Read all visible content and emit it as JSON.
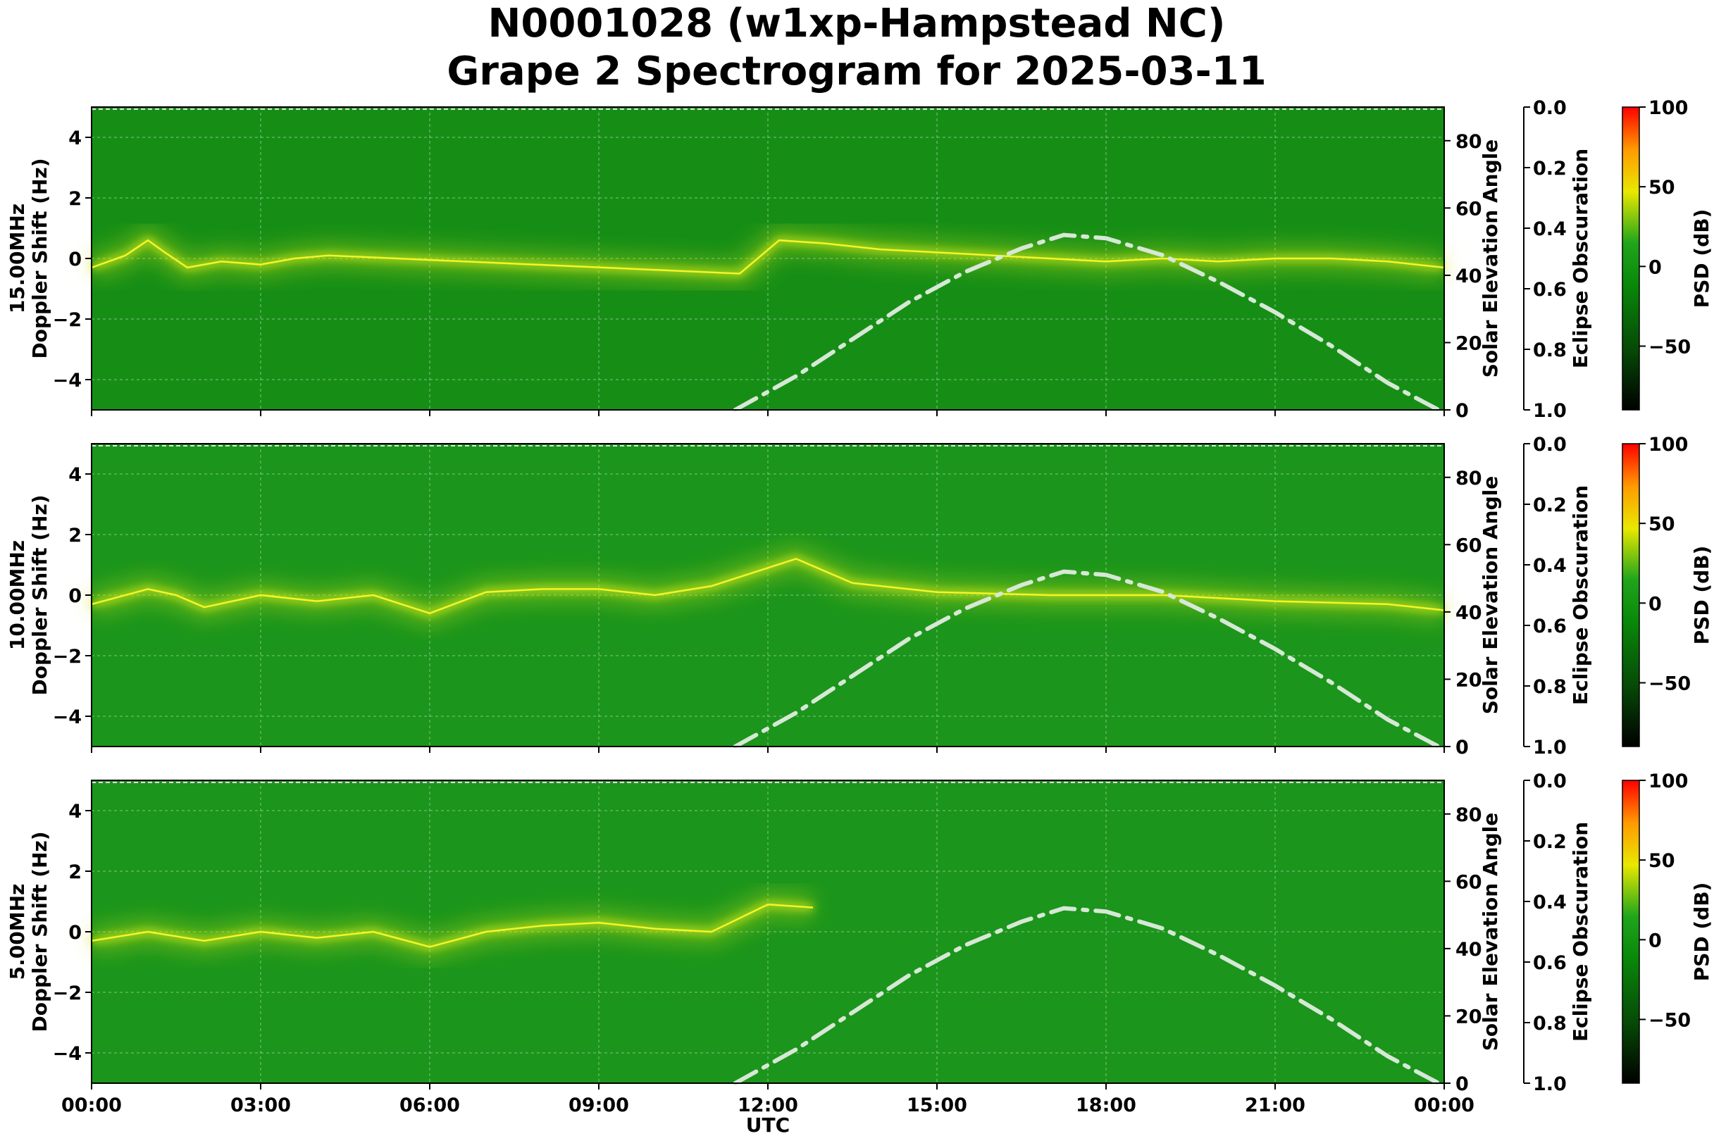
{
  "chart_data": {
    "type": "heatmap",
    "title": "N0001028 (w1xp-Hampstead NC)",
    "subtitle": "Grape 2 Spectrogram for 2025-03-11",
    "xlabel": "UTC",
    "x_ticks": [
      "00:00",
      "03:00",
      "06:00",
      "09:00",
      "12:00",
      "15:00",
      "18:00",
      "21:00",
      "00:00"
    ],
    "x_range_hours": [
      0,
      24
    ],
    "panels": [
      {
        "frequency": "15.00MHz",
        "ylabel": "Doppler Shift (Hz)",
        "ylim": [
          -5,
          5
        ],
        "y_ticks": [
          4,
          2,
          0,
          -2,
          -4
        ],
        "right_axis_label": "Solar Elevation Angle",
        "right_ylim": [
          0,
          90
        ],
        "right_ticks": [
          80,
          60,
          40,
          20,
          0
        ],
        "eclipse_label": "Eclipse Obscuration",
        "eclipse_ticks": [
          "0.0",
          "0.2",
          "0.4",
          "0.6",
          "0.8",
          "1.0"
        ],
        "colorbar_label": "PSD (dB)",
        "colorbar_ticks": [
          "100",
          "50",
          "0",
          "−50"
        ],
        "colorbar_range": [
          -90,
          100
        ],
        "solar_elevation": {
          "hours": [
            11.42,
            12.5,
            13.5,
            14.5,
            15.5,
            16.5,
            17.25,
            18.0,
            19.0,
            20.0,
            21.0,
            22.0,
            23.0,
            23.9
          ],
          "degrees": [
            0,
            10,
            21,
            32,
            41,
            48,
            52,
            51,
            46,
            38,
            29,
            19,
            8,
            -1
          ]
        }
      },
      {
        "frequency": "10.00MHz",
        "ylabel": "Doppler Shift (Hz)",
        "ylim": [
          -5,
          5
        ],
        "y_ticks": [
          4,
          2,
          0,
          -2,
          -4
        ],
        "right_axis_label": "Solar Elevation Angle",
        "right_ylim": [
          0,
          90
        ],
        "right_ticks": [
          80,
          60,
          40,
          20,
          0
        ],
        "eclipse_label": "Eclipse Obscuration",
        "eclipse_ticks": [
          "0.0",
          "0.2",
          "0.4",
          "0.6",
          "0.8",
          "1.0"
        ],
        "colorbar_label": "PSD (dB)",
        "colorbar_ticks": [
          "100",
          "50",
          "0",
          "−50"
        ],
        "colorbar_range": [
          -90,
          100
        ],
        "solar_elevation": {
          "hours": [
            11.42,
            12.5,
            13.5,
            14.5,
            15.5,
            16.5,
            17.25,
            18.0,
            19.0,
            20.0,
            21.0,
            22.0,
            23.0,
            23.9
          ],
          "degrees": [
            0,
            10,
            21,
            32,
            41,
            48,
            52,
            51,
            46,
            38,
            29,
            19,
            8,
            -1
          ]
        }
      },
      {
        "frequency": "5.00MHz",
        "ylabel": "Doppler Shift (Hz)",
        "ylim": [
          -5,
          5
        ],
        "y_ticks": [
          4,
          2,
          0,
          -2,
          -4
        ],
        "right_axis_label": "Solar Elevation Angle",
        "right_ylim": [
          0,
          90
        ],
        "right_ticks": [
          80,
          60,
          40,
          20,
          0
        ],
        "eclipse_label": "Eclipse Obscuration",
        "eclipse_ticks": [
          "0.0",
          "0.2",
          "0.4",
          "0.6",
          "0.8",
          "1.0"
        ],
        "colorbar_label": "PSD (dB)",
        "colorbar_ticks": [
          "100",
          "50",
          "0",
          "−50"
        ],
        "colorbar_range": [
          -90,
          100
        ],
        "solar_elevation": {
          "hours": [
            11.42,
            12.5,
            13.5,
            14.5,
            15.5,
            16.5,
            17.25,
            18.0,
            19.0,
            20.0,
            21.0,
            22.0,
            23.0,
            23.9
          ],
          "degrees": [
            0,
            10,
            21,
            32,
            41,
            48,
            52,
            51,
            46,
            38,
            29,
            19,
            8,
            -1
          ]
        }
      }
    ],
    "doppler_trace": {
      "panel_15MHz": {
        "hours": [
          0,
          0.6,
          1.0,
          1.3,
          1.7,
          2.3,
          3.0,
          3.6,
          4.2,
          11.5,
          12.2,
          13.0,
          14.0,
          15.0,
          16.0,
          17.0,
          18.0,
          19.0,
          20.0,
          21.0,
          22.0,
          23.0,
          24.0
        ],
        "doppler_hz": [
          -0.3,
          0.1,
          0.6,
          0.2,
          -0.3,
          -0.1,
          -0.2,
          0.0,
          0.1,
          -0.5,
          0.6,
          0.5,
          0.3,
          0.2,
          0.1,
          0.0,
          -0.1,
          0.0,
          -0.1,
          0.0,
          0.0,
          -0.1,
          -0.3
        ]
      },
      "panel_10MHz": {
        "hours": [
          0,
          1.0,
          1.5,
          2.0,
          3.0,
          4.0,
          5.0,
          6.0,
          7.0,
          8.0,
          9.0,
          10.0,
          11.0,
          12.0,
          12.5,
          13.5,
          15.0,
          17.0,
          19.0,
          21.0,
          23.0,
          24.0
        ],
        "doppler_hz": [
          -0.3,
          0.2,
          0.0,
          -0.4,
          0.0,
          -0.2,
          0.0,
          -0.6,
          0.1,
          0.2,
          0.2,
          0.0,
          0.3,
          0.9,
          1.2,
          0.4,
          0.1,
          0.0,
          0.0,
          -0.2,
          -0.3,
          -0.5
        ]
      },
      "panel_5MHz": {
        "hours": [
          0,
          1.0,
          2.0,
          3.0,
          4.0,
          5.0,
          6.0,
          7.0,
          8.0,
          9.0,
          10.0,
          11.0,
          12.0,
          12.8
        ],
        "doppler_hz": [
          -0.3,
          0.0,
          -0.3,
          0.0,
          -0.2,
          0.0,
          -0.5,
          0.0,
          0.2,
          0.3,
          0.1,
          0.0,
          0.9,
          0.8
        ]
      }
    }
  }
}
